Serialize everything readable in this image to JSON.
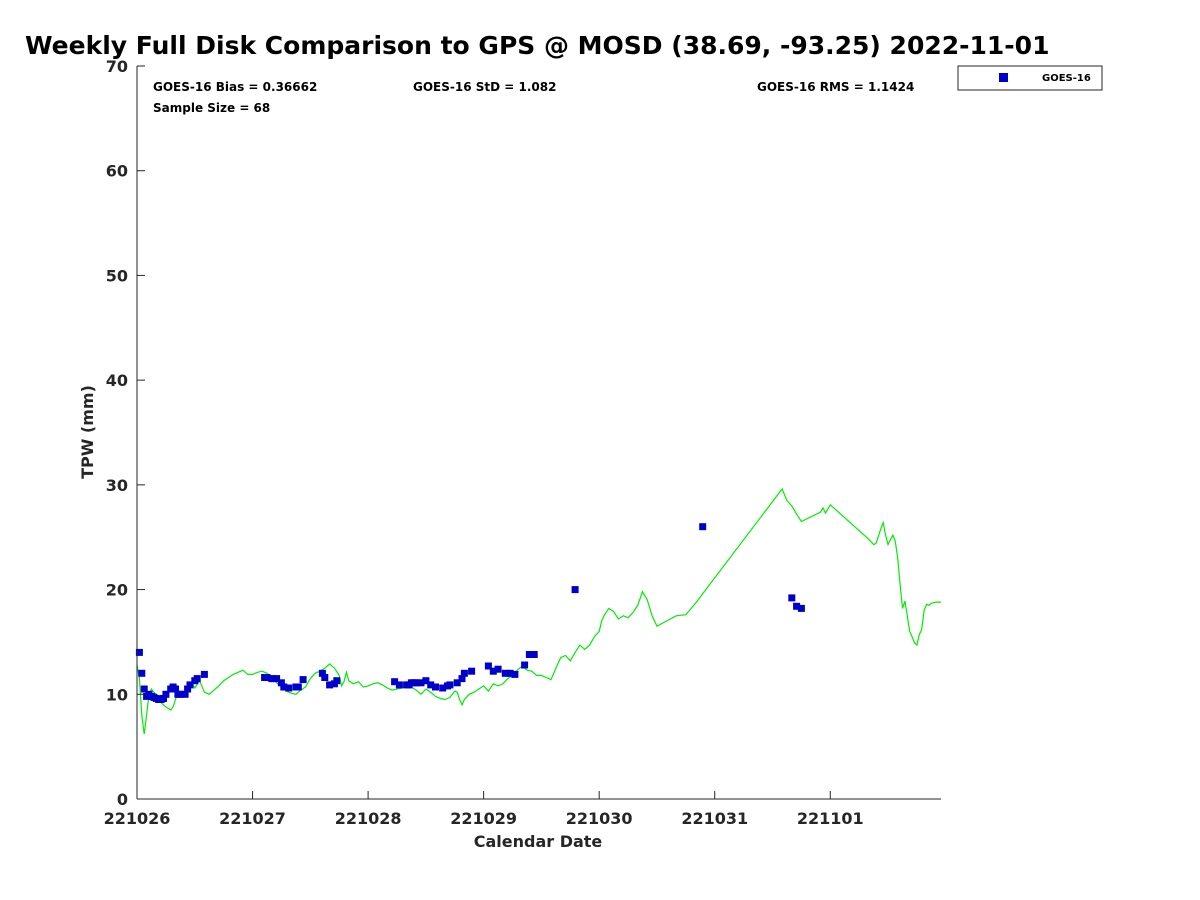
{
  "chart_data": {
    "type": "scatter",
    "title": "Weekly Full Disk Comparison to GPS @ MOSD (38.69, -93.25) 2022-11-01",
    "xlabel": "Calendar Date",
    "ylabel": "TPW (mm)",
    "ylim": [
      0,
      70
    ],
    "yticks": [
      "0",
      "10",
      "20",
      "30",
      "40",
      "50",
      "60",
      "70"
    ],
    "xlim": [
      "2022-10-26T00:00",
      "2022-11-01T23:00"
    ],
    "xticks": [
      {
        "label": "221026",
        "t": "2022-10-26T00:00"
      },
      {
        "label": "221027",
        "t": "2022-10-27T00:00"
      },
      {
        "label": "221028",
        "t": "2022-10-28T00:00"
      },
      {
        "label": "221029",
        "t": "2022-10-29T00:00"
      },
      {
        "label": "221030",
        "t": "2022-10-30T00:00"
      },
      {
        "label": "221031",
        "t": "2022-10-31T00:00"
      },
      {
        "label": "221101",
        "t": "2022-11-01T00:00"
      }
    ],
    "legend_placement": "outside-top-right",
    "grid": false,
    "stats": {
      "bias": "GOES-16 Bias = 0.36662",
      "std": "GOES-16 StD = 1.082",
      "rms": "GOES-16 RMS = 1.1424",
      "sample": "Sample Size = 68"
    },
    "series": [
      {
        "name": "GOES-16",
        "kind": "scatter",
        "color": "#0000cc",
        "points": [
          [
            "2022-10-26T00:30",
            14.0
          ],
          [
            "2022-10-26T01:00",
            12.0
          ],
          [
            "2022-10-26T01:30",
            10.5
          ],
          [
            "2022-10-26T02:00",
            9.8
          ],
          [
            "2022-10-26T02:30",
            10.0
          ],
          [
            "2022-10-26T03:00",
            9.8
          ],
          [
            "2022-10-26T03:30",
            9.7
          ],
          [
            "2022-10-26T04:00",
            9.6
          ],
          [
            "2022-10-26T04:30",
            9.5
          ],
          [
            "2022-10-26T05:00",
            9.5
          ],
          [
            "2022-10-26T05:30",
            9.6
          ],
          [
            "2022-10-26T06:00",
            10.0
          ],
          [
            "2022-10-26T07:00",
            10.5
          ],
          [
            "2022-10-26T07:30",
            10.7
          ],
          [
            "2022-10-26T08:00",
            10.5
          ],
          [
            "2022-10-26T08:30",
            10.0
          ],
          [
            "2022-10-26T09:00",
            10.0
          ],
          [
            "2022-10-26T10:00",
            10.0
          ],
          [
            "2022-10-26T10:30",
            10.5
          ],
          [
            "2022-10-26T11:00",
            10.9
          ],
          [
            "2022-10-26T12:00",
            11.3
          ],
          [
            "2022-10-26T12:30",
            11.5
          ],
          [
            "2022-10-26T14:00",
            11.9
          ],
          [
            "2022-10-27T02:30",
            11.6
          ],
          [
            "2022-10-27T03:00",
            11.6
          ],
          [
            "2022-10-27T04:00",
            11.5
          ],
          [
            "2022-10-27T05:00",
            11.5
          ],
          [
            "2022-10-27T06:00",
            11.1
          ],
          [
            "2022-10-27T06:30",
            10.7
          ],
          [
            "2022-10-27T07:30",
            10.6
          ],
          [
            "2022-10-27T09:00",
            10.7
          ],
          [
            "2022-10-27T09:30",
            10.7
          ],
          [
            "2022-10-27T10:30",
            11.4
          ],
          [
            "2022-10-27T14:30",
            12.0
          ],
          [
            "2022-10-27T15:00",
            11.6
          ],
          [
            "2022-10-27T16:00",
            10.9
          ],
          [
            "2022-10-27T17:00",
            11.0
          ],
          [
            "2022-10-27T17:30",
            11.3
          ],
          [
            "2022-10-28T05:30",
            11.2
          ],
          [
            "2022-10-28T06:30",
            10.9
          ],
          [
            "2022-10-28T08:00",
            10.9
          ],
          [
            "2022-10-28T08:30",
            10.9
          ],
          [
            "2022-10-28T09:00",
            11.1
          ],
          [
            "2022-10-28T09:30",
            11.1
          ],
          [
            "2022-10-28T10:00",
            11.1
          ],
          [
            "2022-10-28T11:00",
            11.1
          ],
          [
            "2022-10-28T12:00",
            11.3
          ],
          [
            "2022-10-28T13:00",
            10.9
          ],
          [
            "2022-10-28T14:00",
            10.7
          ],
          [
            "2022-10-28T15:30",
            10.6
          ],
          [
            "2022-10-28T16:30",
            10.8
          ],
          [
            "2022-10-28T17:00",
            10.9
          ],
          [
            "2022-10-28T18:30",
            11.1
          ],
          [
            "2022-10-28T19:30",
            11.5
          ],
          [
            "2022-10-28T20:00",
            12.0
          ],
          [
            "2022-10-28T21:30",
            12.2
          ],
          [
            "2022-10-29T01:00",
            12.7
          ],
          [
            "2022-10-29T02:00",
            12.2
          ],
          [
            "2022-10-29T03:00",
            12.4
          ],
          [
            "2022-10-29T04:30",
            12.0
          ],
          [
            "2022-10-29T05:30",
            12.0
          ],
          [
            "2022-10-29T06:30",
            11.9
          ],
          [
            "2022-10-29T08:30",
            12.8
          ],
          [
            "2022-10-29T09:30",
            13.8
          ],
          [
            "2022-10-29T10:30",
            13.8
          ],
          [
            "2022-10-29T19:00",
            20.0
          ],
          [
            "2022-10-30T21:30",
            26.0
          ],
          [
            "2022-10-31T16:00",
            19.2
          ],
          [
            "2022-10-31T17:00",
            18.4
          ],
          [
            "2022-10-31T18:00",
            18.2
          ]
        ]
      },
      {
        "name": "GPS",
        "kind": "line",
        "color": "#00ee00",
        "points": [
          [
            "2022-10-26T00:00",
            12.8
          ],
          [
            "2022-10-26T00:30",
            11.5
          ],
          [
            "2022-10-26T01:00",
            8.0
          ],
          [
            "2022-10-26T01:30",
            6.2
          ],
          [
            "2022-10-26T02:00",
            8.0
          ],
          [
            "2022-10-26T02:30",
            10.0
          ],
          [
            "2022-10-26T03:00",
            10.5
          ],
          [
            "2022-10-26T03:30",
            10.2
          ],
          [
            "2022-10-26T04:00",
            10.0
          ],
          [
            "2022-10-26T04:30",
            9.5
          ],
          [
            "2022-10-26T05:00",
            9.2
          ],
          [
            "2022-10-26T06:00",
            8.8
          ],
          [
            "2022-10-26T07:00",
            8.5
          ],
          [
            "2022-10-26T07:30",
            8.8
          ],
          [
            "2022-10-26T08:00",
            9.5
          ],
          [
            "2022-10-26T08:30",
            10.2
          ],
          [
            "2022-10-26T09:00",
            9.8
          ],
          [
            "2022-10-26T10:00",
            10.2
          ],
          [
            "2022-10-26T11:00",
            10.8
          ],
          [
            "2022-10-26T11:30",
            11.0
          ],
          [
            "2022-10-26T12:00",
            10.6
          ],
          [
            "2022-10-26T13:00",
            11.3
          ],
          [
            "2022-10-26T14:00",
            10.2
          ],
          [
            "2022-10-26T15:00",
            10.0
          ],
          [
            "2022-10-26T16:00",
            10.4
          ],
          [
            "2022-10-26T17:00",
            10.8
          ],
          [
            "2022-10-26T18:00",
            11.3
          ],
          [
            "2022-10-26T19:00",
            11.6
          ],
          [
            "2022-10-26T20:00",
            11.9
          ],
          [
            "2022-10-26T21:00",
            12.1
          ],
          [
            "2022-10-26T22:00",
            12.3
          ],
          [
            "2022-10-26T23:00",
            11.9
          ],
          [
            "2022-10-27T00:00",
            11.9
          ],
          [
            "2022-10-27T01:00",
            12.1
          ],
          [
            "2022-10-27T02:00",
            12.2
          ],
          [
            "2022-10-27T03:00",
            12.0
          ],
          [
            "2022-10-27T04:00",
            11.6
          ],
          [
            "2022-10-27T05:00",
            11.1
          ],
          [
            "2022-10-27T06:00",
            10.8
          ],
          [
            "2022-10-27T07:00",
            10.3
          ],
          [
            "2022-10-27T08:00",
            10.1
          ],
          [
            "2022-10-27T09:00",
            10.0
          ],
          [
            "2022-10-27T10:00",
            10.4
          ],
          [
            "2022-10-27T11:00",
            10.7
          ],
          [
            "2022-10-27T12:00",
            11.5
          ],
          [
            "2022-10-27T13:00",
            12.0
          ],
          [
            "2022-10-27T14:00",
            12.2
          ],
          [
            "2022-10-27T15:00",
            12.5
          ],
          [
            "2022-10-27T16:00",
            12.9
          ],
          [
            "2022-10-27T17:00",
            12.5
          ],
          [
            "2022-10-27T18:00",
            11.8
          ],
          [
            "2022-10-27T18:30",
            10.8
          ],
          [
            "2022-10-27T19:00",
            11.2
          ],
          [
            "2022-10-27T19:30",
            12.1
          ],
          [
            "2022-10-27T20:00",
            11.3
          ],
          [
            "2022-10-27T21:00",
            11.0
          ],
          [
            "2022-10-27T22:00",
            11.2
          ],
          [
            "2022-10-27T23:00",
            10.7
          ],
          [
            "2022-10-28T00:00",
            10.8
          ],
          [
            "2022-10-28T01:00",
            11.0
          ],
          [
            "2022-10-28T02:00",
            11.1
          ],
          [
            "2022-10-28T03:00",
            10.9
          ],
          [
            "2022-10-28T04:00",
            10.6
          ],
          [
            "2022-10-28T05:00",
            10.4
          ],
          [
            "2022-10-28T06:00",
            10.5
          ],
          [
            "2022-10-28T07:00",
            10.6
          ],
          [
            "2022-10-28T08:00",
            10.8
          ],
          [
            "2022-10-28T09:00",
            10.7
          ],
          [
            "2022-10-28T10:00",
            10.4
          ],
          [
            "2022-10-28T11:00",
            10.0
          ],
          [
            "2022-10-28T12:00",
            10.5
          ],
          [
            "2022-10-28T13:00",
            10.2
          ],
          [
            "2022-10-28T14:00",
            9.8
          ],
          [
            "2022-10-28T15:00",
            9.6
          ],
          [
            "2022-10-28T16:00",
            9.5
          ],
          [
            "2022-10-28T17:00",
            9.7
          ],
          [
            "2022-10-28T18:00",
            10.3
          ],
          [
            "2022-10-28T18:30",
            10.2
          ],
          [
            "2022-10-28T19:00",
            9.5
          ],
          [
            "2022-10-28T19:30",
            9.0
          ],
          [
            "2022-10-28T20:00",
            9.5
          ],
          [
            "2022-10-28T21:00",
            10.0
          ],
          [
            "2022-10-28T22:00",
            10.2
          ],
          [
            "2022-10-28T23:00",
            10.5
          ],
          [
            "2022-10-29T00:00",
            10.8
          ],
          [
            "2022-10-29T01:00",
            10.3
          ],
          [
            "2022-10-29T02:00",
            11.0
          ],
          [
            "2022-10-29T03:00",
            10.8
          ],
          [
            "2022-10-29T04:00",
            11.0
          ],
          [
            "2022-10-29T05:00",
            11.5
          ],
          [
            "2022-10-29T06:00",
            11.8
          ],
          [
            "2022-10-29T07:00",
            12.3
          ],
          [
            "2022-10-29T08:00",
            12.7
          ],
          [
            "2022-10-29T09:00",
            12.3
          ],
          [
            "2022-10-29T10:00",
            12.2
          ],
          [
            "2022-10-29T11:00",
            11.8
          ],
          [
            "2022-10-29T12:00",
            11.8
          ],
          [
            "2022-10-29T13:00",
            11.6
          ],
          [
            "2022-10-29T14:00",
            11.4
          ],
          [
            "2022-10-29T15:00",
            12.5
          ],
          [
            "2022-10-29T16:00",
            13.5
          ],
          [
            "2022-10-29T17:00",
            13.7
          ],
          [
            "2022-10-29T18:00",
            13.2
          ],
          [
            "2022-10-29T19:00",
            14.0
          ],
          [
            "2022-10-29T20:00",
            14.7
          ],
          [
            "2022-10-29T21:00",
            14.3
          ],
          [
            "2022-10-29T22:00",
            14.7
          ],
          [
            "2022-10-29T23:00",
            15.5
          ],
          [
            "2022-10-30T00:00",
            16.0
          ],
          [
            "2022-10-30T00:30",
            17.0
          ],
          [
            "2022-10-30T01:00",
            17.5
          ],
          [
            "2022-10-30T02:00",
            18.2
          ],
          [
            "2022-10-30T03:00",
            17.9
          ],
          [
            "2022-10-30T04:00",
            17.2
          ],
          [
            "2022-10-30T05:00",
            17.5
          ],
          [
            "2022-10-30T06:00",
            17.3
          ],
          [
            "2022-10-30T07:00",
            17.8
          ],
          [
            "2022-10-30T08:00",
            18.5
          ],
          [
            "2022-10-30T09:00",
            19.8
          ],
          [
            "2022-10-30T10:00",
            19.0
          ],
          [
            "2022-10-30T11:00",
            17.5
          ],
          [
            "2022-10-30T12:00",
            16.5
          ],
          [
            "2022-10-30T14:00",
            17.0
          ],
          [
            "2022-10-30T16:00",
            17.5
          ],
          [
            "2022-10-30T18:00",
            17.6
          ],
          [
            "2022-10-30T20:00",
            18.7
          ],
          [
            "2022-10-31T14:00",
            29.6
          ],
          [
            "2022-10-31T15:00",
            28.5
          ],
          [
            "2022-10-31T16:00",
            28.0
          ],
          [
            "2022-10-31T17:00",
            27.2
          ],
          [
            "2022-10-31T18:00",
            26.5
          ],
          [
            "2022-10-31T22:00",
            27.4
          ],
          [
            "2022-10-31T22:30",
            27.8
          ],
          [
            "2022-10-31T23:00",
            27.3
          ],
          [
            "2022-11-01T00:00",
            28.1
          ],
          [
            "2022-11-01T08:00",
            24.8
          ],
          [
            "2022-11-01T09:00",
            24.3
          ],
          [
            "2022-11-01T09:30",
            24.4
          ],
          [
            "2022-11-01T10:30",
            25.8
          ],
          [
            "2022-11-01T11:00",
            26.4
          ],
          [
            "2022-11-01T11:30",
            25.2
          ],
          [
            "2022-11-01T12:00",
            24.3
          ],
          [
            "2022-11-01T13:00",
            25.2
          ],
          [
            "2022-11-01T13:30",
            24.6
          ],
          [
            "2022-11-01T14:00",
            23.0
          ],
          [
            "2022-11-01T14:30",
            20.5
          ],
          [
            "2022-11-01T15:00",
            18.2
          ],
          [
            "2022-11-01T15:30",
            18.9
          ],
          [
            "2022-11-01T16:00",
            17.5
          ],
          [
            "2022-11-01T16:30",
            16.0
          ],
          [
            "2022-11-01T17:00",
            15.5
          ],
          [
            "2022-11-01T17:30",
            14.9
          ],
          [
            "2022-11-01T18:00",
            14.7
          ],
          [
            "2022-11-01T18:30",
            15.7
          ],
          [
            "2022-11-01T19:00",
            16.2
          ],
          [
            "2022-11-01T19:30",
            18.0
          ],
          [
            "2022-11-01T20:00",
            18.6
          ],
          [
            "2022-11-01T20:30",
            18.5
          ],
          [
            "2022-11-01T21:00",
            18.7
          ],
          [
            "2022-11-01T22:00",
            18.8
          ],
          [
            "2022-11-01T23:00",
            18.8
          ]
        ]
      }
    ]
  }
}
